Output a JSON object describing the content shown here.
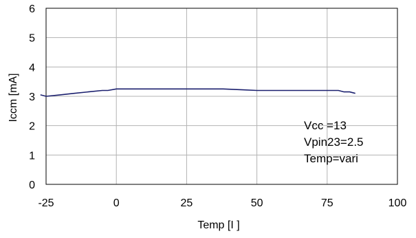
{
  "chart_data": {
    "type": "line",
    "xlabel": "Temp [I ]",
    "ylabel": "Iccm [mA]",
    "xlim": [
      -25,
      100
    ],
    "ylim": [
      0,
      6
    ],
    "xticks": [
      -25,
      0,
      25,
      50,
      75,
      100
    ],
    "yticks": [
      0,
      1,
      2,
      3,
      4,
      5,
      6
    ],
    "grid": true,
    "series_color": "#1a1f6e",
    "series": [
      {
        "x": [
          -27,
          -25,
          -20,
          -15,
          -10,
          -5,
          -3,
          0,
          5,
          10,
          20,
          30,
          38,
          45,
          50,
          55,
          60,
          65,
          70,
          75,
          79,
          81,
          83,
          85
        ],
        "y": [
          3.05,
          3.0,
          3.05,
          3.1,
          3.15,
          3.2,
          3.2,
          3.25,
          3.25,
          3.25,
          3.25,
          3.25,
          3.25,
          3.22,
          3.2,
          3.2,
          3.2,
          3.2,
          3.2,
          3.2,
          3.2,
          3.15,
          3.15,
          3.1
        ]
      }
    ],
    "annotations": [
      "Vcc =13",
      "Vpin23=2.5",
      "Temp=vari"
    ]
  }
}
